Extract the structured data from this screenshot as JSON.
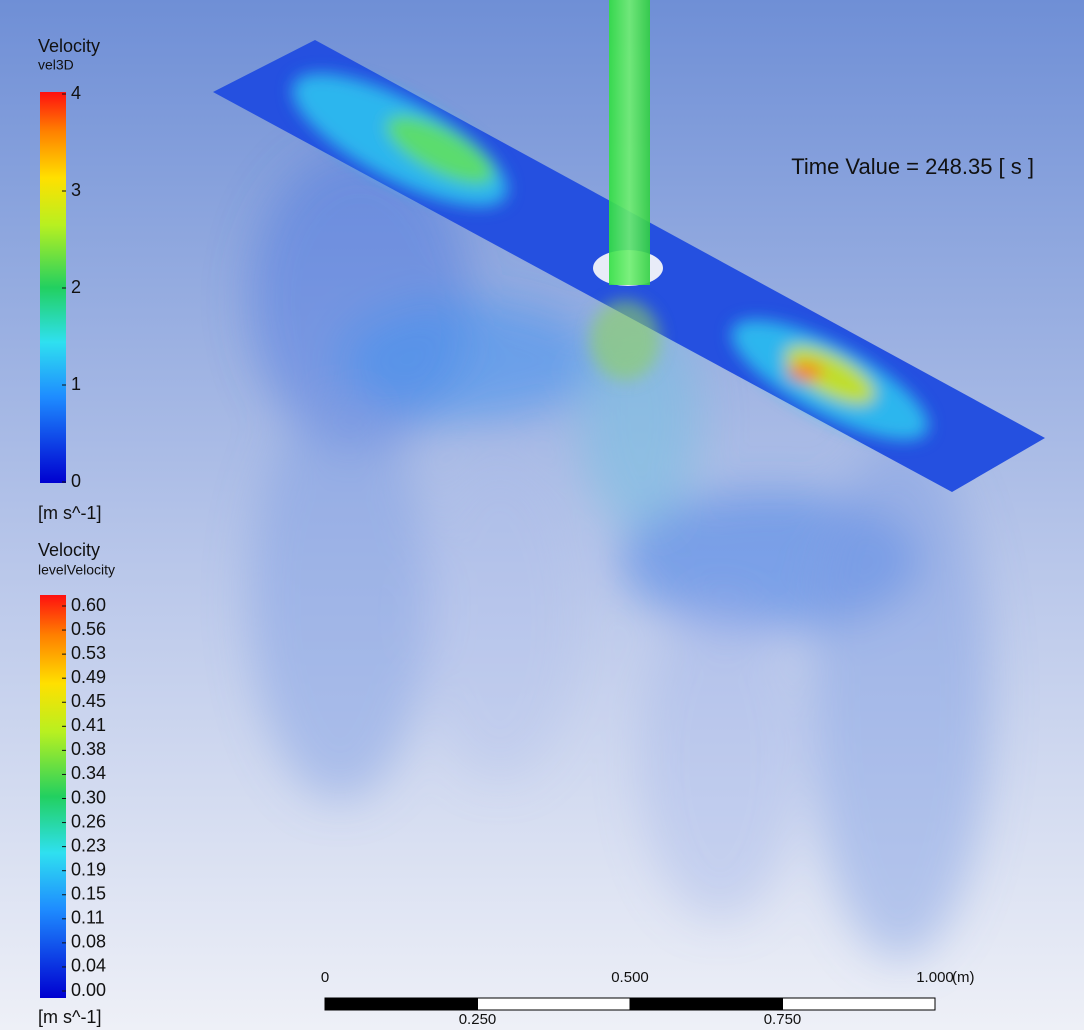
{
  "legend_top": {
    "title": "Velocity",
    "variable": "vel3D",
    "ticks": [
      "4",
      "3",
      "2",
      "1",
      "0"
    ],
    "unit": "[m s^-1]"
  },
  "legend_bottom": {
    "title": "Velocity",
    "variable": "levelVelocity",
    "ticks": [
      "0.60",
      "0.56",
      "0.53",
      "0.49",
      "0.45",
      "0.41",
      "0.38",
      "0.34",
      "0.30",
      "0.26",
      "0.23",
      "0.19",
      "0.15",
      "0.11",
      "0.08",
      "0.04",
      "0.00"
    ],
    "unit": "[m s^-1]"
  },
  "time_label": "Time Value = 248.35 [ s ]",
  "scale_bar": {
    "top_labels": [
      "0",
      "0.500",
      "1.000"
    ],
    "unit": "(m)",
    "bottom_labels": [
      "0.250",
      "0.750"
    ]
  }
}
